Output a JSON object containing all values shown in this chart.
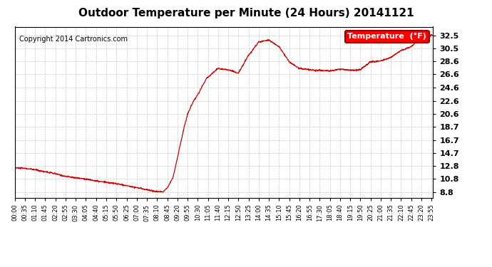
{
  "title": "Outdoor Temperature per Minute (24 Hours) 20141121",
  "copyright": "Copyright 2014 Cartronics.com",
  "legend_label": "Temperature  (°F)",
  "line_color": "#cc0000",
  "bg_color": "#ffffff",
  "grid_color": "#bbbbbb",
  "yticks": [
    8.8,
    10.8,
    12.8,
    14.7,
    16.7,
    18.7,
    20.6,
    22.6,
    24.6,
    26.6,
    28.6,
    30.5,
    32.5
  ],
  "ylim": [
    8.0,
    33.8
  ],
  "xtick_labels": [
    "00:00",
    "00:35",
    "01:10",
    "01:45",
    "02:20",
    "02:55",
    "03:30",
    "04:05",
    "04:40",
    "05:15",
    "05:50",
    "06:25",
    "07:00",
    "07:35",
    "08:10",
    "08:45",
    "09:20",
    "09:55",
    "10:30",
    "11:05",
    "11:40",
    "12:15",
    "12:50",
    "13:25",
    "14:00",
    "14:35",
    "15:10",
    "15:45",
    "16:20",
    "16:55",
    "17:30",
    "18:05",
    "18:40",
    "19:15",
    "19:50",
    "20:25",
    "21:00",
    "21:35",
    "22:10",
    "22:45",
    "23:20",
    "23:55"
  ],
  "key_times": [
    0,
    35,
    70,
    105,
    140,
    175,
    210,
    245,
    280,
    315,
    350,
    385,
    420,
    455,
    475,
    490,
    510,
    525,
    545,
    560,
    580,
    595,
    615,
    630,
    660,
    700,
    735,
    770,
    805,
    840,
    875,
    910,
    945,
    980,
    1015,
    1050,
    1085,
    1120,
    1155,
    1190,
    1225,
    1260,
    1295,
    1330,
    1365,
    1400,
    1435
  ],
  "key_values": [
    12.5,
    12.4,
    12.2,
    11.9,
    11.6,
    11.2,
    11.0,
    10.8,
    10.5,
    10.3,
    10.1,
    9.8,
    9.5,
    9.2,
    9.0,
    8.9,
    8.85,
    9.5,
    11.0,
    14.0,
    18.0,
    20.6,
    22.5,
    23.5,
    26.0,
    27.5,
    27.3,
    26.8,
    29.5,
    31.5,
    31.8,
    30.8,
    28.5,
    27.5,
    27.3,
    27.2,
    27.1,
    27.4,
    27.2,
    27.3,
    28.5,
    28.6,
    29.2,
    30.2,
    30.8,
    32.2,
    32.5
  ]
}
